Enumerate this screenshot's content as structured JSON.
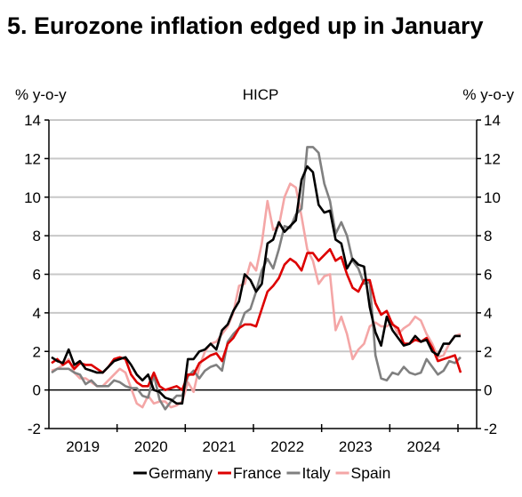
{
  "chart_data": {
    "type": "line",
    "title": "5. Eurozone inflation edged up in January",
    "subtitle": "HICP",
    "ylabel_left": "% y-o-y",
    "ylabel_right": "% y-o-y",
    "ylim": [
      -2,
      14
    ],
    "yticks": [
      -2,
      0,
      2,
      4,
      6,
      8,
      10,
      12,
      14
    ],
    "grid": true,
    "legend_position": "bottom",
    "x_start": "2019-01",
    "x_end": "2025-01",
    "year_labels": [
      "2019",
      "2020",
      "2021",
      "2022",
      "2023",
      "2024"
    ],
    "series": [
      {
        "name": "Germany",
        "color": "#000000",
        "values": [
          1.7,
          1.5,
          1.4,
          2.1,
          1.3,
          1.5,
          1.1,
          1.0,
          0.9,
          0.9,
          1.2,
          1.5,
          1.6,
          1.7,
          1.3,
          0.8,
          0.5,
          0.8,
          0.0,
          -0.1,
          -0.4,
          -0.5,
          -0.7,
          -0.7,
          1.6,
          1.6,
          2.0,
          2.1,
          2.4,
          2.1,
          3.1,
          3.4,
          4.1,
          4.6,
          6.0,
          5.7,
          5.1,
          5.5,
          7.6,
          7.8,
          8.7,
          8.2,
          8.5,
          8.8,
          10.9,
          11.6,
          11.3,
          9.6,
          9.2,
          9.3,
          7.8,
          7.6,
          6.3,
          6.8,
          6.5,
          6.4,
          4.3,
          3.0,
          2.3,
          3.8,
          3.1,
          2.7,
          2.3,
          2.4,
          2.8,
          2.5,
          2.6,
          2.0,
          1.8,
          2.4,
          2.4,
          2.8,
          2.8
        ]
      },
      {
        "name": "France",
        "color": "#dd0000",
        "values": [
          1.4,
          1.6,
          1.3,
          1.5,
          1.1,
          1.4,
          1.3,
          1.3,
          1.1,
          0.9,
          1.2,
          1.6,
          1.7,
          1.6,
          0.8,
          0.4,
          0.2,
          0.2,
          0.9,
          0.2,
          0.0,
          0.1,
          0.2,
          0.0,
          0.8,
          0.8,
          1.4,
          1.6,
          1.8,
          1.9,
          1.5,
          2.4,
          2.7,
          3.2,
          3.4,
          3.4,
          3.3,
          4.2,
          5.1,
          5.4,
          5.8,
          6.5,
          6.8,
          6.6,
          6.2,
          7.1,
          7.1,
          6.7,
          7.0,
          7.3,
          6.7,
          6.9,
          6.0,
          5.3,
          5.1,
          5.7,
          5.7,
          4.5,
          3.9,
          4.1,
          3.4,
          3.2,
          2.4,
          2.4,
          2.6,
          2.5,
          2.7,
          2.2,
          1.5,
          1.6,
          1.7,
          1.8,
          0.9
        ]
      },
      {
        "name": "Italy",
        "color": "#808080",
        "values": [
          0.9,
          1.1,
          1.1,
          1.1,
          0.9,
          0.8,
          0.3,
          0.5,
          0.2,
          0.2,
          0.2,
          0.5,
          0.4,
          0.2,
          0.1,
          0.1,
          -0.3,
          -0.4,
          0.8,
          -0.5,
          -1.0,
          -0.6,
          -0.3,
          -0.3,
          0.7,
          1.0,
          0.6,
          1.0,
          1.2,
          1.3,
          1.0,
          2.5,
          2.9,
          3.2,
          4.0,
          4.2,
          5.1,
          6.2,
          6.8,
          6.3,
          7.3,
          8.5,
          8.4,
          9.1,
          9.4,
          12.6,
          12.6,
          12.3,
          10.7,
          9.8,
          8.1,
          8.7,
          8.0,
          6.7,
          6.3,
          5.5,
          5.6,
          1.8,
          0.6,
          0.5,
          0.9,
          0.8,
          1.2,
          0.9,
          0.8,
          0.9,
          1.6,
          1.2,
          0.8,
          1.0,
          1.5,
          1.4,
          1.7
        ]
      },
      {
        "name": "Spain",
        "color": "#f4a6a6",
        "values": [
          1.0,
          1.1,
          1.3,
          1.6,
          0.9,
          0.6,
          0.6,
          0.4,
          0.2,
          0.2,
          0.5,
          0.8,
          1.1,
          0.9,
          0.1,
          -0.7,
          -0.9,
          -0.3,
          -0.7,
          -0.6,
          -0.6,
          -0.9,
          -0.8,
          -0.6,
          0.4,
          -0.1,
          1.2,
          2.0,
          2.4,
          2.5,
          2.9,
          3.3,
          4.0,
          5.4,
          5.5,
          6.6,
          6.2,
          7.6,
          9.8,
          8.3,
          8.5,
          10.0,
          10.7,
          10.5,
          9.0,
          7.3,
          6.7,
          5.5,
          5.9,
          6.0,
          3.1,
          3.8,
          2.9,
          1.6,
          2.1,
          2.4,
          3.3,
          3.5,
          3.3,
          3.3,
          3.5,
          2.9,
          3.2,
          3.4,
          3.8,
          3.6,
          2.9,
          2.4,
          1.7,
          1.8,
          2.4,
          2.8,
          2.9
        ]
      }
    ]
  }
}
